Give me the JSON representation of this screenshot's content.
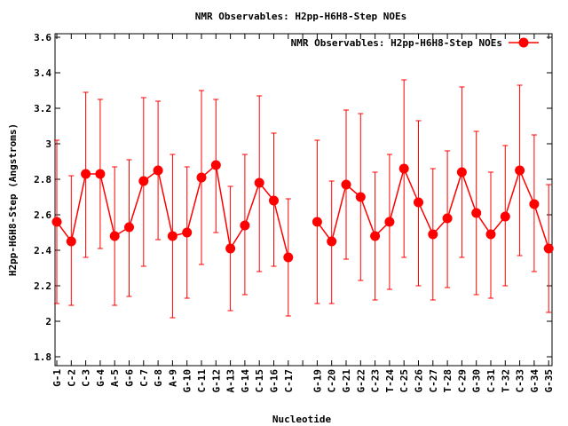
{
  "chart_data": {
    "type": "line",
    "title": "NMR Observables: H2pp-H6H8-Step NOEs",
    "xlabel": "Nucleotide",
    "ylabel": "H2pp-H6H8-Step (Angstroms)",
    "ylim": [
      1.75,
      3.62
    ],
    "yticks": [
      "1.8",
      "2",
      "2.2",
      "2.4",
      "2.6",
      "2.8",
      "3",
      "3.2",
      "3.4",
      "3.6"
    ],
    "grid": false,
    "legend_position": "top-right",
    "color": "#ff0000",
    "series": [
      {
        "name": "NMR Observables: H2pp-H6H8-Step NOEs",
        "points": [
          {
            "x": "G-1",
            "y": 2.56,
            "lo": 2.1,
            "hi": 3.02
          },
          {
            "x": "C-2",
            "y": 2.45,
            "lo": 2.09,
            "hi": 2.82
          },
          {
            "x": "C-3",
            "y": 2.83,
            "lo": 2.36,
            "hi": 3.29
          },
          {
            "x": "G-4",
            "y": 2.83,
            "lo": 2.41,
            "hi": 3.25
          },
          {
            "x": "A-5",
            "y": 2.48,
            "lo": 2.09,
            "hi": 2.87
          },
          {
            "x": "G-6",
            "y": 2.53,
            "lo": 2.14,
            "hi": 2.91
          },
          {
            "x": "C-7",
            "y": 2.79,
            "lo": 2.31,
            "hi": 3.26
          },
          {
            "x": "G-8",
            "y": 2.85,
            "lo": 2.46,
            "hi": 3.24
          },
          {
            "x": "A-9",
            "y": 2.48,
            "lo": 2.02,
            "hi": 2.94
          },
          {
            "x": "G-10",
            "y": 2.5,
            "lo": 2.13,
            "hi": 2.87
          },
          {
            "x": "C-11",
            "y": 2.81,
            "lo": 2.32,
            "hi": 3.3
          },
          {
            "x": "G-12",
            "y": 2.88,
            "lo": 2.5,
            "hi": 3.25
          },
          {
            "x": "A-13",
            "y": 2.41,
            "lo": 2.06,
            "hi": 2.76
          },
          {
            "x": "G-14",
            "y": 2.54,
            "lo": 2.15,
            "hi": 2.94
          },
          {
            "x": "C-15",
            "y": 2.78,
            "lo": 2.28,
            "hi": 3.27
          },
          {
            "x": "G-16",
            "y": 2.68,
            "lo": 2.31,
            "hi": 3.06
          },
          {
            "x": "C-17",
            "y": 2.36,
            "lo": 2.03,
            "hi": 2.69
          },
          {
            "x": "",
            "y": null,
            "lo": null,
            "hi": null
          },
          {
            "x": "G-19",
            "y": 2.56,
            "lo": 2.1,
            "hi": 3.02
          },
          {
            "x": "C-20",
            "y": 2.45,
            "lo": 2.1,
            "hi": 2.79
          },
          {
            "x": "G-21",
            "y": 2.77,
            "lo": 2.35,
            "hi": 3.19
          },
          {
            "x": "G-22",
            "y": 2.7,
            "lo": 2.23,
            "hi": 3.17
          },
          {
            "x": "C-23",
            "y": 2.48,
            "lo": 2.12,
            "hi": 2.84
          },
          {
            "x": "T-24",
            "y": 2.56,
            "lo": 2.18,
            "hi": 2.94
          },
          {
            "x": "C-25",
            "y": 2.86,
            "lo": 2.36,
            "hi": 3.36
          },
          {
            "x": "G-26",
            "y": 2.67,
            "lo": 2.2,
            "hi": 3.13
          },
          {
            "x": "C-27",
            "y": 2.49,
            "lo": 2.12,
            "hi": 2.86
          },
          {
            "x": "T-28",
            "y": 2.58,
            "lo": 2.19,
            "hi": 2.96
          },
          {
            "x": "C-29",
            "y": 2.84,
            "lo": 2.36,
            "hi": 3.32
          },
          {
            "x": "G-30",
            "y": 2.61,
            "lo": 2.15,
            "hi": 3.07
          },
          {
            "x": "C-31",
            "y": 2.49,
            "lo": 2.13,
            "hi": 2.84
          },
          {
            "x": "T-32",
            "y": 2.59,
            "lo": 2.2,
            "hi": 2.99
          },
          {
            "x": "C-33",
            "y": 2.85,
            "lo": 2.37,
            "hi": 3.33
          },
          {
            "x": "G-34",
            "y": 2.66,
            "lo": 2.28,
            "hi": 3.05
          },
          {
            "x": "G-35",
            "y": 2.41,
            "lo": 2.05,
            "hi": 2.77
          }
        ]
      }
    ]
  }
}
